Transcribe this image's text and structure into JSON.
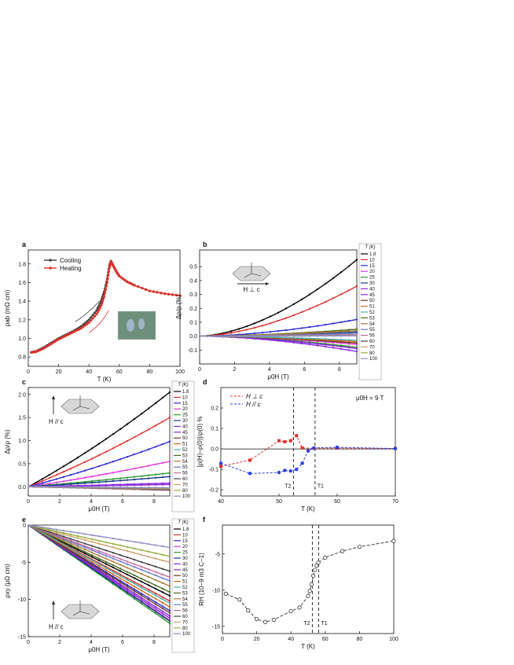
{
  "panels": [
    {
      "letter": "a",
      "xlabel": "T (K)",
      "ylabel": "ρab (mΩ cm)",
      "xlim": [
        0,
        100
      ],
      "ylim": [
        0.7,
        1.95
      ],
      "xticks": [
        0,
        20,
        40,
        60,
        80,
        100
      ],
      "yticks": [
        0.8,
        1.0,
        1.2,
        1.4,
        1.6,
        1.8
      ],
      "legend": [
        "Cooling",
        "Heating"
      ],
      "chart_data": {
        "type": "line",
        "series": [
          {
            "name": "Cooling",
            "color": "#444444",
            "x": [
              2,
              5,
              10,
              15,
              20,
              25,
              30,
              35,
              40,
              45,
              48,
              50,
              52,
              53.5,
              54.5,
              56,
              58,
              60,
              65,
              70,
              80,
              90,
              100
            ],
            "y": [
              0.85,
              0.86,
              0.9,
              0.95,
              1.0,
              1.04,
              1.08,
              1.13,
              1.2,
              1.3,
              1.4,
              1.5,
              1.64,
              1.78,
              1.83,
              1.78,
              1.72,
              1.67,
              1.61,
              1.57,
              1.51,
              1.48,
              1.46
            ]
          },
          {
            "name": "Heating",
            "color": "#e0302a",
            "x": [
              2,
              5,
              10,
              15,
              20,
              25,
              30,
              35,
              40,
              45,
              48,
              50,
              52,
              53.5,
              54.5,
              56,
              58,
              60,
              65,
              70,
              80,
              90,
              100
            ],
            "y": [
              0.85,
              0.855,
              0.89,
              0.94,
              0.99,
              1.03,
              1.07,
              1.11,
              1.17,
              1.26,
              1.35,
              1.45,
              1.6,
              1.76,
              1.83,
              1.78,
              1.72,
              1.67,
              1.61,
              1.57,
              1.51,
              1.48,
              1.46
            ]
          }
        ]
      }
    },
    {
      "letter": "b",
      "xlabel": "μ0H (T)",
      "ylabel": "Δρ/ρ (%)",
      "xlim": [
        0,
        9
      ],
      "ylim": [
        -0.2,
        0.62
      ],
      "xticks": [
        0,
        2,
        4,
        6,
        8
      ],
      "yticks": [
        -0.1,
        0.0,
        0.1,
        0.2,
        0.3,
        0.4,
        0.5
      ],
      "inset_label": "H ⊥ c",
      "legend_title": "T (K)",
      "chart_data": {
        "type": "line",
        "form": "power",
        "x_max": 9,
        "temperatures": [
          "1.8",
          "10",
          "15",
          "20",
          "25",
          "30",
          "40",
          "45",
          "50",
          "51",
          "52",
          "53",
          "54",
          "55",
          "56",
          "60",
          "70",
          "80",
          "100"
        ],
        "end_values": [
          0.55,
          0.36,
          0.12,
          -0.06,
          -0.08,
          0.03,
          -0.11,
          -0.09,
          -0.05,
          -0.04,
          -0.03,
          0.05,
          0.04,
          0.02,
          0.01,
          0.005,
          0.005,
          0.003,
          0.002
        ]
      }
    },
    {
      "letter": "c",
      "xlabel": "μ0H (T)",
      "ylabel": "Δρ/ρ (%)",
      "xlim": [
        0,
        9
      ],
      "ylim": [
        -0.2,
        2.15
      ],
      "xticks": [
        0,
        2,
        4,
        6,
        8
      ],
      "yticks": [
        0.0,
        0.5,
        1.0,
        1.5,
        2.0
      ],
      "inset_label": "H // c",
      "legend_title": "T (K)",
      "chart_data": {
        "type": "line",
        "form": "quasi-linear",
        "x_max": 9,
        "temperatures": [
          "1.8",
          "10",
          "15",
          "20",
          "25",
          "30",
          "40",
          "45",
          "50",
          "51",
          "52",
          "53",
          "54",
          "55",
          "56",
          "60",
          "70",
          "80",
          "100"
        ],
        "end_values": [
          2.05,
          1.5,
          0.98,
          0.55,
          0.3,
          0.22,
          0.08,
          0.05,
          -0.03,
          -0.04,
          -0.05,
          -0.07,
          -0.08,
          -0.07,
          -0.06,
          -0.05,
          -0.04,
          -0.03,
          -0.02
        ]
      }
    },
    {
      "letter": "d",
      "xlabel": "T (K)",
      "ylabel": "[ρ(H)−ρ(0)]/ρ(0) %",
      "xlim": [
        40,
        70
      ],
      "ylim": [
        -0.23,
        0.3
      ],
      "xticks": [
        40,
        50,
        60,
        70
      ],
      "yticks": [
        -0.2,
        -0.1,
        0.0,
        0.1,
        0.2
      ],
      "annotation": "μ0H = 9 T",
      "vlines": [
        {
          "x": 52.5,
          "label": "T2"
        },
        {
          "x": 56.2,
          "label": "T1"
        }
      ],
      "chart_data": {
        "type": "line",
        "series": [
          {
            "name": "H ⊥ c",
            "color": "#e0302a",
            "x": [
              40,
              45,
              50,
              51,
              52,
              53,
              54,
              56,
              60,
              70
            ],
            "y": [
              -0.085,
              -0.055,
              0.04,
              0.035,
              0.04,
              0.065,
              0.005,
              0.003,
              0.004,
              0.002
            ]
          },
          {
            "name": "H // c",
            "color": "#2a3fe0",
            "x": [
              40,
              45,
              50,
              51,
              52,
              53,
              54,
              55,
              56,
              60,
              70
            ],
            "y": [
              -0.07,
              -0.12,
              -0.115,
              -0.105,
              -0.108,
              -0.1,
              -0.07,
              -0.01,
              0.005,
              0.008,
              0.002
            ]
          }
        ]
      }
    },
    {
      "letter": "e",
      "xlabel": "μ0H (T)",
      "ylabel": "ρxy (μΩ cm)",
      "xlim": [
        0,
        9
      ],
      "ylim": [
        -15,
        0
      ],
      "xticks": [
        0,
        2,
        4,
        6,
        8
      ],
      "yticks": [
        -15,
        -10,
        -5,
        0
      ],
      "inset_label": "H // c",
      "legend_title": "T (K)",
      "chart_data": {
        "type": "line",
        "form": "linear",
        "x_max": 9,
        "temperatures": [
          "1.8",
          "10",
          "15",
          "20",
          "25",
          "30",
          "40",
          "45",
          "50",
          "51",
          "52",
          "53",
          "54",
          "55",
          "56",
          "60",
          "70",
          "80",
          "100"
        ],
        "end_values": [
          -9.5,
          -10.2,
          -11.5,
          -12.8,
          -13.2,
          -12.9,
          -12.5,
          -12.2,
          -11.8,
          -11.0,
          -10.5,
          -9.0,
          -8.2,
          -7.5,
          -7.0,
          -6.2,
          -5.0,
          -4.2,
          -3.0
        ]
      }
    },
    {
      "letter": "f",
      "xlabel": "T (K)",
      "ylabel": "RH (10−9 m3 C−1)",
      "xlim": [
        0,
        100
      ],
      "ylim": [
        -16,
        -1
      ],
      "xticks": [
        0,
        20,
        40,
        60,
        80,
        100
      ],
      "yticks": [
        -15,
        -10,
        -5
      ],
      "vlines": [
        {
          "x": 52.5,
          "label": "T2"
        },
        {
          "x": 56.2,
          "label": "T1"
        }
      ],
      "chart_data": {
        "type": "scatter",
        "x": [
          2,
          10,
          15,
          20,
          25,
          30,
          40,
          45,
          50,
          51,
          52,
          53,
          54,
          55,
          56,
          60,
          70,
          80,
          100
        ],
        "y": [
          -10.5,
          -11.3,
          -12.8,
          -14.0,
          -14.4,
          -14.1,
          -12.9,
          -12.4,
          -10.8,
          -10.1,
          -9.2,
          -8.0,
          -7.2,
          -6.6,
          -6.2,
          -5.5,
          -4.6,
          -4.0,
          -3.2
        ]
      }
    }
  ],
  "colors": {
    "palette": [
      "#000000",
      "#e0302a",
      "#2a2ad8",
      "#e03be0",
      "#2a9a2a",
      "#1a3a8a",
      "#8a2ae0",
      "#8a2ad0",
      "#6a3a1a",
      "#d06a1a",
      "#4ab0b0",
      "#4a6a1a",
      "#b07a3a",
      "#6a7ad0",
      "#c86aa0",
      "#444444",
      "#d0a06a",
      "#9ab040",
      "#9090c8"
    ]
  }
}
